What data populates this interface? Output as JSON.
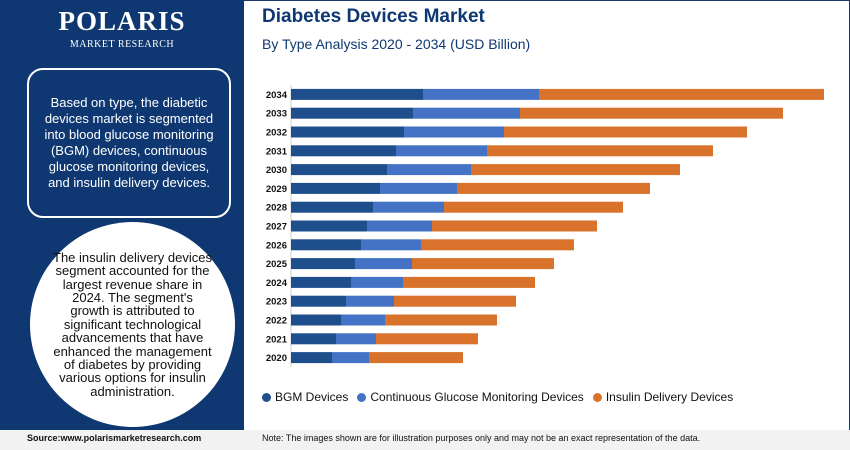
{
  "brand": {
    "name": "POLARIS",
    "tagline": "MARKET RESEARCH"
  },
  "left_panel": {
    "info_text": "Based on type, the diabetic devices market is segmented into blood glucose monitoring (BGM) devices, continuous glucose monitoring devices, and insulin delivery devices.",
    "highlight_text": "The insulin delivery devices segment accounted for the largest revenue share in 2024. The segment's growth is attributed to significant technological advancements that have enhanced the management of diabetes by providing various options for insulin administration."
  },
  "footer": {
    "source": "Source:www.polarismarketresearch.com",
    "note": "Note: The images shown are for illustration purposes only and may not be an exact representation of the data."
  },
  "colors": {
    "brand_navy": "#0f3872",
    "bgm": "#1f4e8c",
    "cgm": "#4472c4",
    "insulin": "#d9732b"
  },
  "chart_data": {
    "type": "bar",
    "orientation": "horizontal",
    "stacked": true,
    "title": "Diabetes Devices Market",
    "subtitle": "By Type Analysis 2020 - 2034 (USD Billion)",
    "categories": [
      "2034",
      "2033",
      "2032",
      "2031",
      "2030",
      "2029",
      "2028",
      "2027",
      "2026",
      "2025",
      "2024",
      "2023",
      "2022",
      "2021",
      "2020"
    ],
    "series": [
      {
        "name": "BGM Devices",
        "color": "#1f4e8c",
        "values": [
          13.2,
          12.2,
          11.3,
          10.5,
          9.6,
          8.9,
          8.2,
          7.6,
          7.0,
          6.4,
          6.0,
          5.5,
          5.0,
          4.5,
          4.1
        ]
      },
      {
        "name": "Continuous Glucose Monitoring Devices",
        "color": "#4472c4",
        "values": [
          11.6,
          10.7,
          10.0,
          9.1,
          8.4,
          7.7,
          7.1,
          6.5,
          6.0,
          5.7,
          5.2,
          4.8,
          4.4,
          4.0,
          3.7
        ]
      },
      {
        "name": "Insulin Delivery Devices",
        "color": "#d9732b",
        "values": [
          28.5,
          26.3,
          24.3,
          22.6,
          20.9,
          19.3,
          17.9,
          16.5,
          15.3,
          14.2,
          13.2,
          12.2,
          11.2,
          10.2,
          9.4
        ]
      }
    ],
    "xlim": [
      0,
      54
    ],
    "grid": false,
    "legend": "bottom"
  }
}
